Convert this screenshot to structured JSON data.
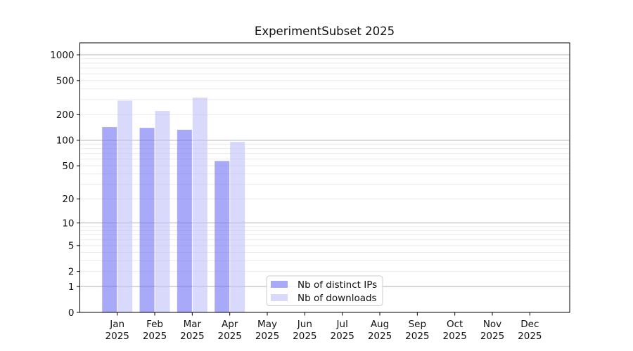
{
  "chart_data": {
    "type": "bar",
    "title": "ExperimentSubset 2025",
    "xlabel": "",
    "ylabel": "",
    "scale": "log1p",
    "ylim": [
      0,
      1380
    ],
    "grid": true,
    "months": [
      "Jan",
      "Feb",
      "Mar",
      "Apr",
      "May",
      "Jun",
      "Jul",
      "Aug",
      "Sep",
      "Oct",
      "Nov",
      "Dec"
    ],
    "year": "2025",
    "yticks": [
      0,
      1,
      2,
      5,
      10,
      20,
      50,
      100,
      200,
      500,
      1000
    ],
    "series": [
      {
        "name": "Nb of distinct IPs",
        "color": "rgba(112,112,245,0.6)",
        "values": [
          143,
          140,
          133,
          57,
          0,
          0,
          0,
          0,
          0,
          0,
          0,
          0
        ]
      },
      {
        "name": "Nb of downloads",
        "color": "rgba(192,192,250,0.6)",
        "values": [
          292,
          221,
          317,
          96,
          0,
          0,
          0,
          0,
          0,
          0,
          0,
          0
        ]
      }
    ],
    "legend_position": "lower-center",
    "colors": {
      "major_grid": "#b3b3b3",
      "minor_grid": "#ebebeb",
      "spine": "#000000",
      "legend_border": "#cccccc",
      "background": "#ffffff"
    }
  }
}
